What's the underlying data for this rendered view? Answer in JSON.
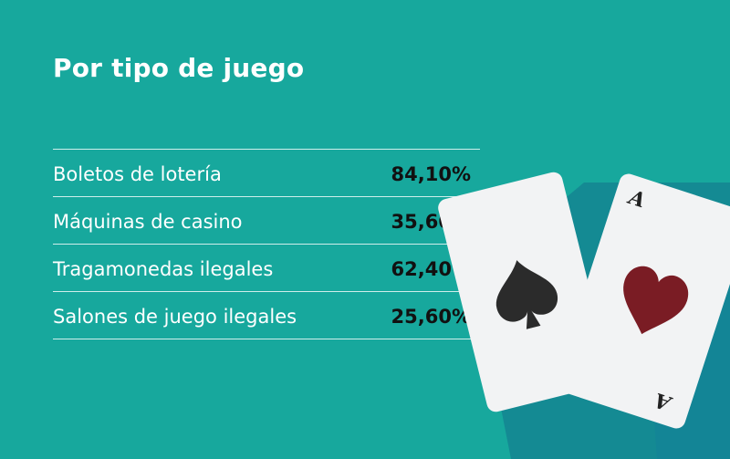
{
  "title": "Por tipo de juego",
  "rows": [
    {
      "label": "Boletos de lotería",
      "value": "84,10%"
    },
    {
      "label": "Máquinas de casino",
      "value": "35,60%"
    },
    {
      "label": "Tragamonedas ilegales",
      "value": "62,40%"
    },
    {
      "label": "Salones de juego ilegales",
      "value": "25,60%"
    }
  ],
  "cards": {
    "ace_rank": "A",
    "left_suit_icon": "spade-icon",
    "right_suit_icon": "heart-icon"
  },
  "colors": {
    "background": "#17a89d",
    "shadow": "#148a93",
    "card": "#f2f3f4",
    "spade": "#2b2b2b",
    "heart": "#7a1c24",
    "value_text": "#111111"
  }
}
